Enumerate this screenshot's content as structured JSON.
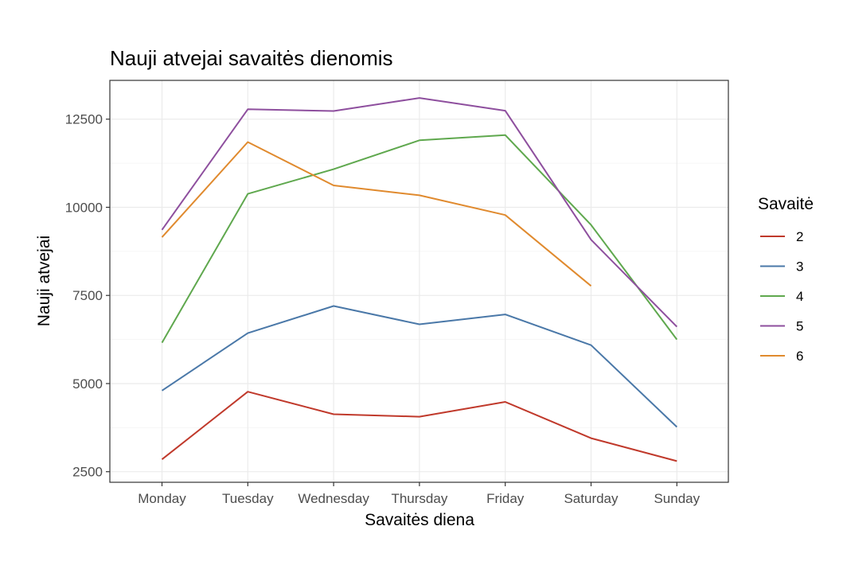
{
  "chart_data": {
    "type": "line",
    "title": "Nauji atvejai savaitės dienomis",
    "xlabel": "Savaitės diena",
    "ylabel": "Nauji atvejai",
    "categories": [
      "Monday",
      "Tuesday",
      "Wednesday",
      "Thursday",
      "Friday",
      "Saturday",
      "Sunday"
    ],
    "ylim": [
      2200,
      13600
    ],
    "yticks": [
      2500,
      5000,
      7500,
      10000,
      12500
    ],
    "grid": true,
    "legend": {
      "title": "Savaitė",
      "position": "right"
    },
    "series": [
      {
        "name": "2",
        "color": "#c0392b",
        "values": [
          2850,
          4770,
          4130,
          4060,
          4480,
          3450,
          2800
        ]
      },
      {
        "name": "3",
        "color": "#4a78a8",
        "values": [
          4800,
          6430,
          7200,
          6680,
          6960,
          6090,
          3770
        ]
      },
      {
        "name": "4",
        "color": "#5fa84e",
        "values": [
          6160,
          10380,
          11080,
          11900,
          12050,
          9500,
          6250
        ]
      },
      {
        "name": "5",
        "color": "#8e4f9e",
        "values": [
          9360,
          12780,
          12730,
          13100,
          12740,
          9080,
          6610
        ]
      },
      {
        "name": "6",
        "color": "#e08a2e",
        "values": [
          9150,
          11850,
          10620,
          10340,
          9780,
          7770,
          null
        ]
      }
    ]
  }
}
